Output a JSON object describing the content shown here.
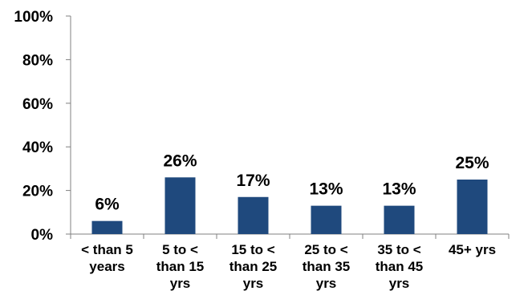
{
  "chart_data": {
    "type": "bar",
    "categories": [
      [
        "< than 5",
        "years"
      ],
      [
        "5 to <",
        "than 15",
        "yrs"
      ],
      [
        "15 to <",
        "than 25",
        "yrs"
      ],
      [
        "25 to <",
        "than 35",
        "yrs"
      ],
      [
        "35 to <",
        "than 45",
        "yrs"
      ],
      [
        "45+ yrs"
      ]
    ],
    "values": [
      6,
      26,
      17,
      13,
      13,
      25
    ],
    "value_labels": [
      "6%",
      "26%",
      "17%",
      "13%",
      "13%",
      "25%"
    ],
    "ylim": [
      0,
      100
    ],
    "yticks": [
      0,
      20,
      40,
      60,
      80,
      100
    ],
    "ytick_labels": [
      "0%",
      "20%",
      "40%",
      "60%",
      "80%",
      "100%"
    ],
    "title": "",
    "xlabel": "",
    "ylabel": "",
    "grid": false,
    "legend": "none",
    "bar_color": "#1F497D"
  }
}
